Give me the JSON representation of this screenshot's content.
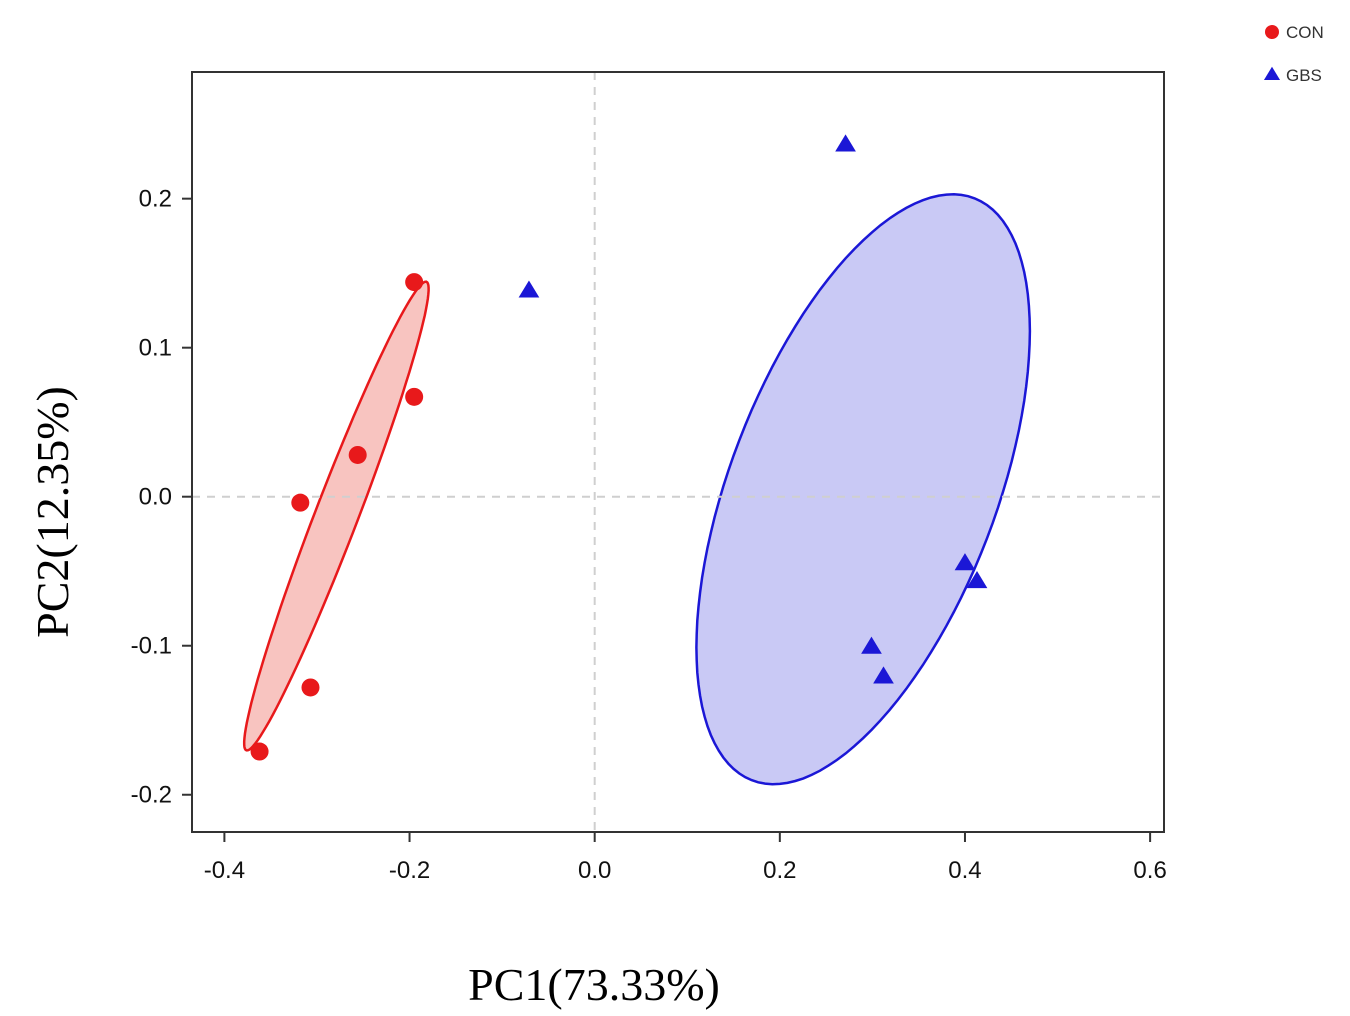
{
  "chart_data": {
    "type": "scatter",
    "title": "",
    "xlabel": "PC1(73.33%)",
    "ylabel": "PC2(12.35%)",
    "xlim": [
      -0.435,
      0.615
    ],
    "ylim": [
      -0.225,
      0.285
    ],
    "xticks": [
      -0.4,
      -0.2,
      0.0,
      0.2,
      0.4,
      0.6
    ],
    "xtick_labels": [
      "-0.4",
      "-0.2",
      "0.0",
      "0.2",
      "0.4",
      "0.6"
    ],
    "yticks": [
      -0.2,
      -0.1,
      0.0,
      0.1,
      0.2
    ],
    "ytick_labels": [
      "-0.2",
      "-0.1",
      "0.0",
      "0.1",
      "0.2"
    ],
    "grid": false,
    "reference_lines": {
      "x": 0.0,
      "y": 0.0,
      "style": "dashed"
    },
    "legend_position": "top-right, outside plot",
    "series": [
      {
        "name": "CON",
        "marker": "circle",
        "color": "#e8191b",
        "fill": "#f8c4c0",
        "points": [
          {
            "x": -0.195,
            "y": 0.144
          },
          {
            "x": -0.195,
            "y": 0.067
          },
          {
            "x": -0.256,
            "y": 0.028
          },
          {
            "x": -0.318,
            "y": -0.004
          },
          {
            "x": -0.307,
            "y": -0.128
          },
          {
            "x": -0.362,
            "y": -0.171
          }
        ],
        "ellipse": {
          "cx": -0.279,
          "cy": -0.013,
          "rx": 0.185,
          "ry": 0.021,
          "angle_deg": 58
        }
      },
      {
        "name": "GBS",
        "marker": "triangle",
        "color": "#1b17d6",
        "fill": "#c9c9f5",
        "points": [
          {
            "x": 0.271,
            "y": 0.236
          },
          {
            "x": -0.071,
            "y": 0.138
          },
          {
            "x": 0.4,
            "y": -0.045
          },
          {
            "x": 0.413,
            "y": -0.057
          },
          {
            "x": 0.299,
            "y": -0.101
          },
          {
            "x": 0.312,
            "y": -0.121
          }
        ],
        "ellipse": {
          "cx": 0.29,
          "cy": 0.005,
          "rx": 0.235,
          "ry": 0.128,
          "angle_deg": 50
        }
      }
    ]
  }
}
